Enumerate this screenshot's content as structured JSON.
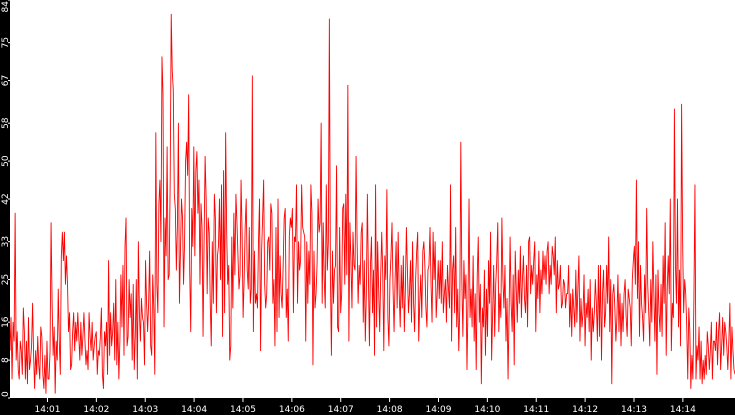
{
  "chart_data": {
    "type": "line",
    "title": "",
    "xlabel": "",
    "ylabel": "",
    "ylim": [
      0,
      84
    ],
    "y_ticks": [
      "0",
      "8",
      "16",
      "25",
      "33",
      "42",
      "50",
      "58",
      "67",
      "75",
      "84"
    ],
    "x_ticks": [
      "14:01",
      "14:02",
      "14:03",
      "14:04",
      "14:05",
      "14:06",
      "14:07",
      "14:08",
      "14:09",
      "14:10",
      "14:11",
      "14:12",
      "14:13",
      "14:14"
    ],
    "x_range": [
      "14:00:14",
      "14:15:04"
    ],
    "grid": false,
    "legend": "none",
    "colors": {
      "line": "#ff0000",
      "axis_bar": "#000000",
      "axis_text": "#ffffff",
      "background": "#ffffff"
    },
    "series": [
      {
        "values": [
          10,
          17,
          4,
          16,
          12,
          39,
          8,
          14,
          6,
          4,
          12,
          10,
          5,
          19,
          14,
          4,
          12,
          3,
          17,
          6,
          8,
          11,
          20,
          9,
          2,
          10,
          5,
          13,
          7,
          4,
          15,
          13,
          5,
          2,
          9,
          1,
          12,
          4,
          4,
          10,
          37,
          20,
          9,
          15,
          1,
          12,
          8,
          23,
          12,
          5,
          30,
          35,
          29,
          35,
          24,
          30,
          24,
          14,
          18,
          6,
          7,
          14,
          18,
          10,
          16,
          12,
          18,
          13,
          8,
          16,
          9,
          13,
          18,
          12,
          7,
          10,
          6,
          18,
          13,
          10,
          16,
          8,
          11,
          13,
          14,
          5,
          10,
          9,
          13,
          19,
          5,
          2,
          14,
          11,
          16,
          5,
          29,
          9,
          18,
          11,
          14,
          20,
          8,
          25,
          7,
          16,
          4,
          12,
          26,
          15,
          28,
          9,
          32,
          38,
          11,
          13,
          25,
          17,
          22,
          8,
          24,
          6,
          13,
          25,
          4,
          33,
          18,
          12,
          21,
          17,
          16,
          7,
          29,
          20,
          14,
          20,
          31,
          11,
          9,
          26,
          19,
          5,
          56,
          24,
          18,
          41,
          46,
          33,
          72,
          64,
          15,
          38,
          30,
          53,
          25,
          26,
          46,
          81,
          69,
          65,
          43,
          40,
          27,
          36,
          58,
          20,
          31,
          42,
          38,
          24,
          33,
          50,
          54,
          47,
          64,
          27,
          14,
          40,
          32,
          53,
          30,
          48,
          52,
          39,
          46,
          24,
          41,
          36,
          13,
          33,
          51,
          42,
          22,
          38,
          35,
          20,
          11,
          33,
          20,
          43,
          38,
          18,
          30,
          32,
          42,
          25,
          45,
          13,
          48,
          18,
          56,
          35,
          24,
          28,
          8,
          11,
          34,
          19,
          39,
          26,
          43,
          37,
          30,
          23,
          26,
          46,
          35,
          17,
          25,
          36,
          42,
          27,
          23,
          36,
          20,
          23,
          68,
          14,
          31,
          20,
          22,
          19,
          33,
          42,
          10,
          31,
          38,
          46,
          24,
          19,
          22,
          33,
          34,
          27,
          41,
          39,
          20,
          25,
          11,
          36,
          14,
          42,
          17,
          30,
          22,
          19,
          28,
          38,
          40,
          17,
          23,
          12,
          34,
          38,
          36,
          40,
          18,
          34,
          33,
          45,
          20,
          33,
          27,
          29,
          45,
          36,
          35,
          34,
          12,
          33,
          20,
          31,
          24,
          45,
          39,
          7,
          31,
          19,
          22,
          28,
          42,
          35,
          37,
          58,
          20,
          37,
          25,
          19,
          45,
          27,
          33,
          80,
          26,
          9,
          31,
          20,
          27,
          28,
          49,
          15,
          14,
          36,
          18,
          22,
          40,
          41,
          24,
          43,
          26,
          66,
          12,
          37,
          29,
          19,
          35,
          28,
          27,
          51,
          33,
          20,
          28,
          24,
          35,
          37,
          16,
          29,
          12,
          22,
          43,
          26,
          11,
          28,
          34,
          18,
          27,
          9,
          45,
          15,
          33,
          23,
          14,
          26,
          35,
          26,
          10,
          30,
          25,
          44,
          17,
          11,
          25,
          30,
          37,
          23,
          14,
          25,
          33,
          19,
          35,
          22,
          15,
          28,
          19,
          30,
          14,
          23,
          36,
          27,
          18,
          22,
          29,
          16,
          33,
          20,
          14,
          25,
          31,
          35,
          12,
          20,
          26,
          17,
          31,
          33,
          28,
          19,
          15,
          27,
          28,
          36,
          24,
          16,
          35,
          25,
          33,
          17,
          22,
          29,
          21,
          29,
          20,
          33,
          18,
          22,
          25,
          16,
          28,
          23,
          19,
          45,
          12,
          27,
          30,
          18,
          36,
          15,
          23,
          10,
          19,
          54,
          25,
          13,
          29,
          21,
          26,
          6,
          20,
          42,
          17,
          23,
          15,
          30,
          12,
          22,
          6,
          26,
          34,
          16,
          24,
          3,
          19,
          15,
          27,
          9,
          23,
          13,
          29,
          20,
          35,
          8,
          18,
          28,
          13,
          24,
          29,
          37,
          14,
          22,
          17,
          38,
          25,
          19,
          28,
          12,
          21,
          4,
          18,
          34,
          20,
          14,
          26,
          7,
          31,
          23,
          16,
          27,
          20,
          32,
          17,
          25,
          30,
          21,
          18,
          28,
          15,
          33,
          34,
          22,
          28,
          24,
          29,
          33,
          14,
          26,
          21,
          31,
          18,
          27,
          22,
          31,
          25,
          30,
          24,
          31,
          33,
          22,
          28,
          24,
          32,
          30,
          26,
          34,
          18,
          29,
          23,
          24,
          28,
          19,
          20,
          25,
          24,
          19,
          22,
          22,
          28,
          15,
          22,
          13,
          23,
          19,
          15,
          27,
          16,
          23,
          30,
          12,
          21,
          15,
          18,
          26,
          11,
          20,
          17,
          23,
          14,
          25,
          8,
          19,
          14,
          18,
          25,
          20,
          12,
          28,
          13,
          28,
          8,
          22,
          27,
          15,
          18,
          28,
          20,
          34,
          14,
          25,
          3,
          22,
          24,
          19,
          12,
          17,
          26,
          14,
          22,
          11,
          20,
          14,
          22,
          25,
          17,
          13,
          23,
          21,
          19,
          11,
          25,
          29,
          32,
          24,
          46,
          21,
          33,
          13,
          28,
          20,
          17,
          12,
          26,
          18,
          40,
          24,
          18,
          11,
          25,
          16,
          33,
          22,
          12,
          26,
          5,
          27,
          18,
          14,
          24,
          13,
          30,
          20,
          37,
          9,
          23,
          30,
          22,
          42,
          10,
          20,
          17,
          61,
          28,
          20,
          42,
          15,
          27,
          11,
          62,
          33,
          18,
          25,
          22,
          15,
          4,
          19,
          14,
          2,
          9,
          4,
          21,
          45,
          4,
          11,
          8,
          15,
          4,
          12,
          3,
          8,
          4,
          9,
          5,
          14,
          11,
          6,
          10,
          16,
          4,
          12,
          12,
          10,
          16,
          7,
          14,
          18,
          6,
          11,
          17,
          9,
          16,
          14,
          11,
          6,
          12,
          20,
          4,
          15,
          10,
          6,
          5
        ]
      }
    ]
  }
}
